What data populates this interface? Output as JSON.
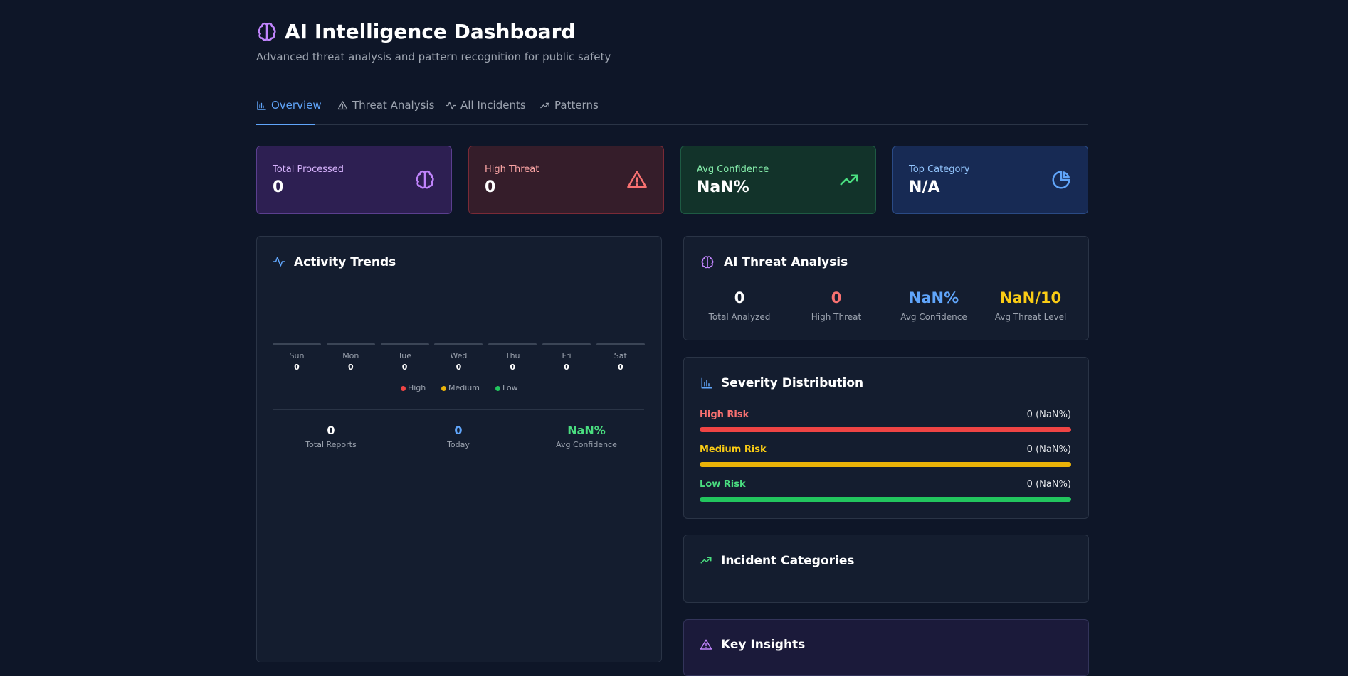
{
  "header": {
    "title": "AI Intelligence Dashboard",
    "subtitle": "Advanced threat analysis and pattern recognition for public safety"
  },
  "tabs": [
    "Overview",
    "Threat Analysis",
    "All Incidents",
    "Patterns"
  ],
  "stats": [
    {
      "label": "Total Processed",
      "value": "0"
    },
    {
      "label": "High Threat",
      "value": "0"
    },
    {
      "label": "Avg Confidence",
      "value": "NaN%"
    },
    {
      "label": "Top Category",
      "value": "N/A"
    }
  ],
  "activity": {
    "title": "Activity Trends",
    "days": [
      {
        "day": "Sun",
        "count": "0"
      },
      {
        "day": "Mon",
        "count": "0"
      },
      {
        "day": "Tue",
        "count": "0"
      },
      {
        "day": "Wed",
        "count": "0"
      },
      {
        "day": "Thu",
        "count": "0"
      },
      {
        "day": "Fri",
        "count": "0"
      },
      {
        "day": "Sat",
        "count": "0"
      }
    ],
    "legend": [
      "High",
      "Medium",
      "Low"
    ],
    "summary": [
      {
        "value": "0",
        "label": "Total Reports"
      },
      {
        "value": "0",
        "label": "Today"
      },
      {
        "value": "NaN%",
        "label": "Avg Confidence"
      }
    ]
  },
  "threat_analysis": {
    "title": "AI Threat Analysis",
    "metrics": [
      {
        "value": "0",
        "label": "Total Analyzed"
      },
      {
        "value": "0",
        "label": "High Threat"
      },
      {
        "value": "NaN%",
        "label": "Avg Confidence"
      },
      {
        "value": "NaN/10",
        "label": "Avg Threat Level"
      }
    ]
  },
  "severity": {
    "title": "Severity Distribution",
    "rows": [
      {
        "label": "High Risk",
        "value": "0 (NaN%)"
      },
      {
        "label": "Medium Risk",
        "value": "0 (NaN%)"
      },
      {
        "label": "Low Risk",
        "value": "0 (NaN%)"
      }
    ]
  },
  "categories": {
    "title": "Incident Categories"
  },
  "insights": {
    "title": "Key Insights"
  }
}
